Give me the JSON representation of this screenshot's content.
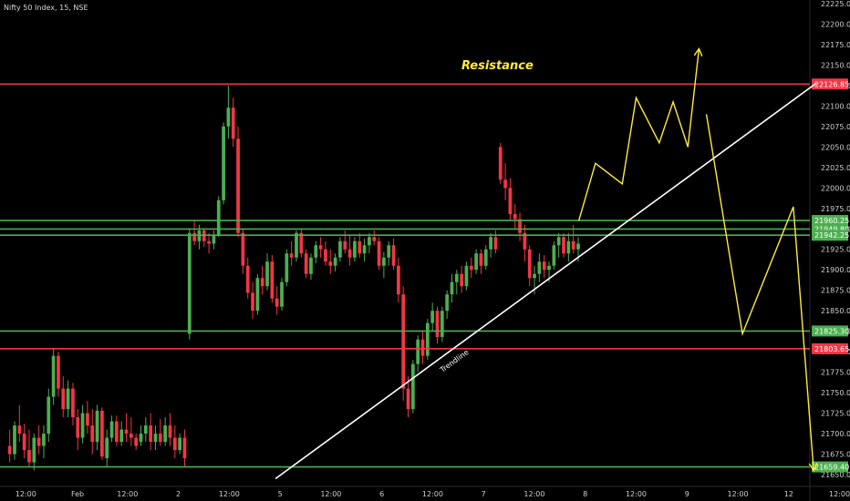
{
  "header": {
    "title": "Nifty 50 Index, 15, NSE"
  },
  "colors": {
    "background": "#000000",
    "bull": "#4caf50",
    "bear": "#f23645",
    "support": "#4caf50",
    "resistance": "#f23645",
    "projection": "#ffeb3b",
    "trendline": "#ffffff"
  },
  "chart_data": {
    "type": "candlestick",
    "title": "Nifty 50 Index, 15, NSE",
    "y_axis": {
      "range": [
        21640,
        22225
      ],
      "ticks": [
        21650,
        21675,
        21700,
        21725,
        21750,
        21775,
        21800,
        21825,
        21850,
        21875,
        21900,
        21925,
        21950,
        21975,
        22000,
        22025,
        22050,
        22075,
        22100,
        22125,
        22150,
        22175,
        22200,
        22225
      ]
    },
    "x_axis": {
      "range": [
        0,
        86
      ],
      "ticks": [
        {
          "x": 2,
          "label": "12:00"
        },
        {
          "x": 7.6,
          "label": "Feb"
        },
        {
          "x": 13,
          "label": "12:00"
        },
        {
          "x": 18.5,
          "label": "2"
        },
        {
          "x": 24,
          "label": "12:00"
        },
        {
          "x": 29.5,
          "label": "5"
        },
        {
          "x": 35,
          "label": "12:00"
        },
        {
          "x": 40.5,
          "label": "6"
        },
        {
          "x": 46,
          "label": "12:00"
        },
        {
          "x": 51.5,
          "label": "7"
        },
        {
          "x": 57,
          "label": "12:00"
        },
        {
          "x": 62.5,
          "label": "8"
        },
        {
          "x": 68,
          "label": "12:00"
        },
        {
          "x": 73.5,
          "label": "9"
        },
        {
          "x": 79,
          "label": "12:00"
        },
        {
          "x": 84.5,
          "label": "12"
        },
        {
          "x": 90,
          "label": "12:00"
        }
      ]
    },
    "levels": [
      {
        "value": 22126.85,
        "label": "22126.85",
        "kind": "resistance"
      },
      {
        "value": 21960.25,
        "label": "21960.25",
        "kind": "support"
      },
      {
        "value": 21949.8,
        "label": "21949.80",
        "kind": "support"
      },
      {
        "value": 21942.25,
        "label": "21942.25",
        "kind": "support"
      },
      {
        "value": 21825.3,
        "label": "21825.30",
        "kind": "support"
      },
      {
        "value": 21803.65,
        "label": "21803.65",
        "kind": "resistance"
      },
      {
        "value": 21659.4,
        "label": "21659.40",
        "kind": "support"
      }
    ],
    "annotations": [
      {
        "text": "Resistance",
        "x": 53,
        "y": 22145
      },
      {
        "text": "Trendline",
        "x": 48.5,
        "y": 21783
      }
    ],
    "trendline": [
      [
        29,
        21645
      ],
      [
        87.5,
        22128
      ]
    ],
    "projection_up": [
      [
        61.8,
        21960
      ],
      [
        63.6,
        22030
      ],
      [
        66.5,
        22005
      ],
      [
        68,
        22110
      ],
      [
        70.5,
        22055
      ],
      [
        72,
        22105
      ],
      [
        73.6,
        22050
      ],
      [
        74.8,
        22170
      ]
    ],
    "projection_down": [
      [
        75.6,
        22090
      ],
      [
        79.5,
        21822
      ],
      [
        85,
        21977
      ],
      [
        87.2,
        21655
      ]
    ],
    "candles": [
      [
        21685,
        21705,
        21665,
        21675
      ],
      [
        21675,
        21715,
        21668,
        21710
      ],
      [
        21710,
        21735,
        21690,
        21700
      ],
      [
        21700,
        21712,
        21670,
        21680
      ],
      [
        21680,
        21705,
        21660,
        21665
      ],
      [
        21665,
        21700,
        21655,
        21695
      ],
      [
        21695,
        21710,
        21675,
        21685
      ],
      [
        21685,
        21710,
        21670,
        21700
      ],
      [
        21700,
        21755,
        21690,
        21745
      ],
      [
        21745,
        21805,
        21735,
        21795
      ],
      [
        21795,
        21800,
        21745,
        21755
      ],
      [
        21755,
        21770,
        21720,
        21730
      ],
      [
        21730,
        21765,
        21720,
        21755
      ],
      [
        21755,
        21762,
        21710,
        21720
      ],
      [
        21720,
        21730,
        21680,
        21695
      ],
      [
        21695,
        21735,
        21688,
        21725
      ],
      [
        21725,
        21740,
        21700,
        21710
      ],
      [
        21710,
        21730,
        21675,
        21690
      ],
      [
        21690,
        21735,
        21680,
        21728
      ],
      [
        21728,
        21732,
        21668,
        21672
      ],
      [
        21670,
        21705,
        21660,
        21695
      ],
      [
        21695,
        21722,
        21690,
        21715
      ],
      [
        21715,
        21722,
        21685,
        21690
      ],
      [
        21690,
        21715,
        21685,
        21705
      ],
      [
        21705,
        21725,
        21690,
        21700
      ],
      [
        21700,
        21720,
        21685,
        21695
      ],
      [
        21695,
        21700,
        21680,
        21685
      ],
      [
        21690,
        21710,
        21685,
        21700
      ],
      [
        21700,
        21720,
        21690,
        21710
      ],
      [
        21710,
        21725,
        21680,
        21690
      ],
      [
        21690,
        21710,
        21680,
        21700
      ],
      [
        21700,
        21718,
        21685,
        21690
      ],
      [
        21690,
        21720,
        21685,
        21710
      ],
      [
        21710,
        21725,
        21685,
        21695
      ],
      [
        21695,
        21710,
        21670,
        21680
      ],
      [
        21680,
        21700,
        21675,
        21695
      ],
      [
        21695,
        21705,
        21660,
        21670
      ],
      [
        21822,
        21950,
        21815,
        21945
      ],
      [
        21945,
        21960,
        21930,
        21935
      ],
      [
        21935,
        21955,
        21925,
        21948
      ],
      [
        21948,
        21950,
        21928,
        21935
      ],
      [
        21935,
        21945,
        21920,
        21932
      ],
      [
        21932,
        21948,
        21925,
        21943
      ],
      [
        21943,
        21990,
        21940,
        21985
      ],
      [
        21985,
        22080,
        21980,
        22075
      ],
      [
        22075,
        22125,
        22060,
        22098
      ],
      [
        22098,
        22110,
        22050,
        22060
      ],
      [
        22060,
        22075,
        21940,
        21945
      ],
      [
        21945,
        21950,
        21895,
        21905
      ],
      [
        21905,
        21915,
        21865,
        21872
      ],
      [
        21872,
        21885,
        21840,
        21850
      ],
      [
        21850,
        21895,
        21845,
        21890
      ],
      [
        21890,
        21905,
        21870,
        21880
      ],
      [
        21880,
        21920,
        21875,
        21910
      ],
      [
        21910,
        21918,
        21860,
        21865
      ],
      [
        21865,
        21880,
        21845,
        21855
      ],
      [
        21855,
        21890,
        21850,
        21885
      ],
      [
        21885,
        21925,
        21880,
        21920
      ],
      [
        21920,
        21935,
        21905,
        21915
      ],
      [
        21915,
        21948,
        21910,
        21945
      ],
      [
        21945,
        21950,
        21915,
        21920
      ],
      [
        21920,
        21925,
        21890,
        21895
      ],
      [
        21895,
        21920,
        21888,
        21915
      ],
      [
        21915,
        21935,
        21908,
        21930
      ],
      [
        21930,
        21940,
        21915,
        21925
      ],
      [
        21925,
        21935,
        21905,
        21910
      ],
      [
        21910,
        21925,
        21895,
        21905
      ],
      [
        21905,
        21920,
        21898,
        21915
      ],
      [
        21915,
        21940,
        21910,
        21935
      ],
      [
        21935,
        21948,
        21920,
        21925
      ],
      [
        21925,
        21942,
        21905,
        21915
      ],
      [
        21915,
        21940,
        21910,
        21935
      ],
      [
        21935,
        21945,
        21915,
        21920
      ],
      [
        21920,
        21938,
        21910,
        21930
      ],
      [
        21930,
        21945,
        21920,
        21940
      ],
      [
        21940,
        21948,
        21930,
        21935
      ],
      [
        21935,
        21940,
        21900,
        21905
      ],
      [
        21905,
        21922,
        21890,
        21915
      ],
      [
        21915,
        21935,
        21905,
        21930
      ],
      [
        21930,
        21938,
        21900,
        21905
      ],
      [
        21905,
        21915,
        21860,
        21870
      ],
      [
        21870,
        21880,
        21740,
        21755
      ],
      [
        21755,
        21770,
        21720,
        21730
      ],
      [
        21730,
        21790,
        21725,
        21785
      ],
      [
        21785,
        21820,
        21775,
        21815
      ],
      [
        21815,
        21825,
        21785,
        21795
      ],
      [
        21795,
        21840,
        21790,
        21835
      ],
      [
        21835,
        21860,
        21825,
        21850
      ],
      [
        21850,
        21855,
        21810,
        21818
      ],
      [
        21818,
        21855,
        21812,
        21850
      ],
      [
        21850,
        21875,
        21840,
        21870
      ],
      [
        21870,
        21895,
        21860,
        21885
      ],
      [
        21885,
        21900,
        21870,
        21895
      ],
      [
        21895,
        21905,
        21872,
        21880
      ],
      [
        21880,
        21910,
        21875,
        21905
      ],
      [
        21905,
        21915,
        21890,
        21900
      ],
      [
        21900,
        21925,
        21895,
        21920
      ],
      [
        21920,
        21925,
        21895,
        21905
      ],
      [
        21905,
        21930,
        21900,
        21925
      ],
      [
        21925,
        21945,
        21915,
        21940
      ],
      [
        21940,
        21948,
        21920,
        21925
      ],
      [
        22050,
        22055,
        22005,
        22010
      ],
      [
        22010,
        22030,
        21985,
        22000
      ],
      [
        22000,
        22012,
        21960,
        21968
      ],
      [
        21968,
        21980,
        21950,
        21962
      ],
      [
        21962,
        21970,
        21935,
        21945
      ],
      [
        21945,
        21955,
        21910,
        21925
      ],
      [
        21925,
        21930,
        21880,
        21890
      ],
      [
        21890,
        21905,
        21870,
        21895
      ],
      [
        21895,
        21920,
        21885,
        21910
      ],
      [
        21910,
        21918,
        21890,
        21900
      ],
      [
        21900,
        21910,
        21885,
        21905
      ],
      [
        21905,
        21935,
        21900,
        21930
      ],
      [
        21930,
        21945,
        21915,
        21940
      ],
      [
        21940,
        21945,
        21915,
        21920
      ],
      [
        21920,
        21945,
        21910,
        21935
      ],
      [
        21935,
        21955,
        21920,
        21925
      ],
      [
        21925,
        21940,
        21910,
        21932
      ]
    ]
  }
}
